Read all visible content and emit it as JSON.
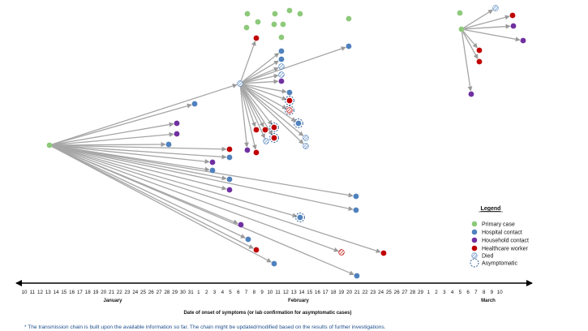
{
  "axis": {
    "ticks": [
      "10",
      "11",
      "12",
      "13",
      "14",
      "15",
      "16",
      "17",
      "18",
      "19",
      "20",
      "21",
      "22",
      "23",
      "24",
      "25",
      "26",
      "27",
      "28",
      "29",
      "30",
      "31",
      "1",
      "2",
      "3",
      "4",
      "5",
      "6",
      "7",
      "8",
      "9",
      "10",
      "11",
      "12",
      "13",
      "14",
      "15",
      "16",
      "17",
      "18",
      "19",
      "20",
      "21",
      "22",
      "23",
      "24",
      "25",
      "26",
      "27",
      "28",
      "29",
      "1",
      "2",
      "3",
      "4",
      "5",
      "6",
      "7",
      "8",
      "9",
      "10"
    ],
    "months": [
      "January",
      "February",
      "March"
    ],
    "title": "Date of onset of symptoms (or lab confirmation for asymptomatic cases)"
  },
  "legend": {
    "title": "Legend",
    "items": [
      {
        "key": "primary",
        "label": "Primary case",
        "color": "#8dc97a"
      },
      {
        "key": "hospital",
        "label": "Hospital contact",
        "color": "#4f81bd"
      },
      {
        "key": "household",
        "label": "Household contact",
        "color": "#7030a0"
      },
      {
        "key": "healthcare",
        "label": "Healthcare worker",
        "color": "#c00000"
      },
      {
        "key": "died",
        "label": "Died",
        "color": "#4f81bd"
      },
      {
        "key": "asymptomatic",
        "label": "Asymptomatic",
        "color": "#1f4e8c"
      }
    ]
  },
  "footnote": "* The transmission chain is built upon the available information so far. The chain might be updated/modified based on the results of further investigations.",
  "colors": {
    "primary": "#8dc97a",
    "hospital": "#4f81bd",
    "household": "#7030a0",
    "healthcare": "#c00000",
    "arrow": "#a6a6a6",
    "axis": "#000000"
  }
}
